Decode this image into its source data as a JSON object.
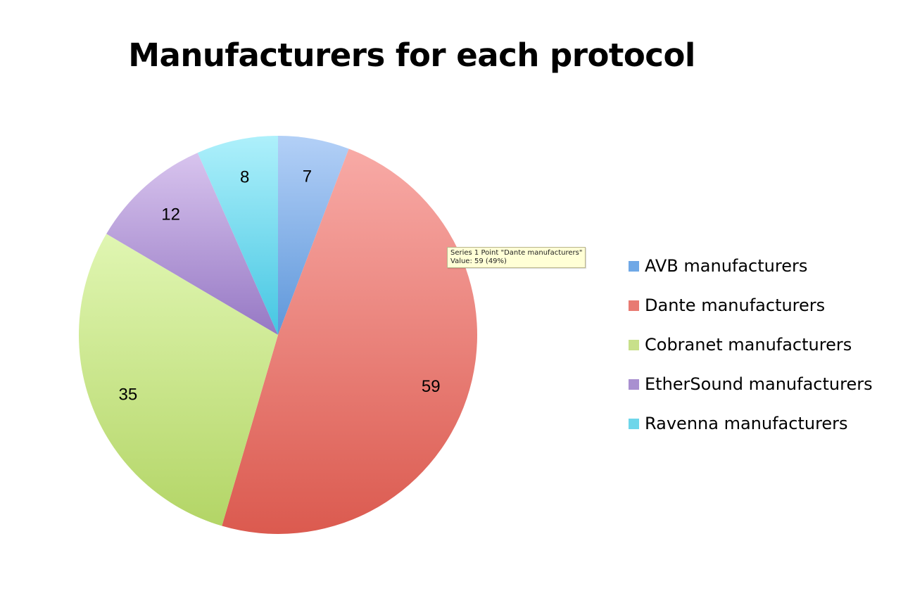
{
  "chart_data": {
    "type": "pie",
    "title": "Manufacturers for each protocol",
    "categories": [
      "AVB manufacturers",
      "Dante manufacturers",
      "Cobranet manufacturers",
      "EtherSound manufacturers",
      "Ravenna manufacturers"
    ],
    "values": [
      7,
      59,
      35,
      12,
      8
    ],
    "value_labels": [
      "7",
      "59",
      "35",
      "12",
      "8"
    ],
    "colors": [
      "#6fa8e6",
      "#e87a72",
      "#c8e08a",
      "#a990d0",
      "#6ed6ea"
    ],
    "legend_position": "right"
  },
  "tooltip": {
    "line1": "Series 1 Point \"Dante manufacturers\"",
    "line2": "Value: 59 (49%)"
  }
}
